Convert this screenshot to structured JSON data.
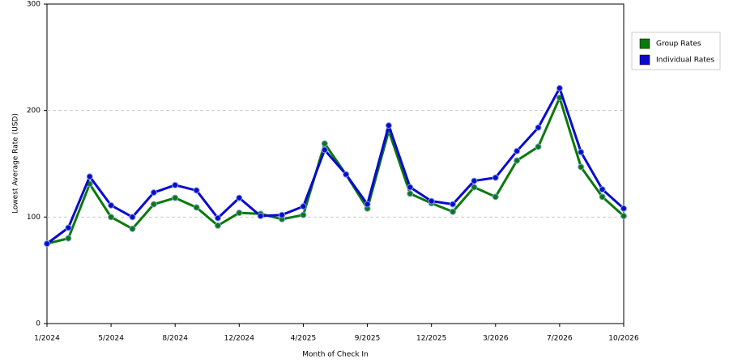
{
  "chart_data": {
    "type": "line",
    "xlabel": "Month of Check In",
    "ylabel": "Lowest Average Rate (USD)",
    "categories": [
      "1/2024",
      null,
      null,
      "5/2024",
      null,
      null,
      "8/2024",
      null,
      null,
      "12/2024",
      null,
      null,
      "4/2025",
      null,
      null,
      "9/2025",
      null,
      null,
      "12/2025",
      null,
      null,
      "3/2026",
      null,
      null,
      "7/2026",
      null,
      null,
      "10/2026"
    ],
    "series": [
      {
        "name": "Group Rates",
        "color": "#0a7a0a",
        "values": [
          75,
          80,
          131,
          100,
          89,
          112,
          118,
          109,
          92,
          104,
          103,
          98,
          102,
          169,
          140,
          108,
          181,
          122,
          113,
          105,
          128,
          119,
          153,
          166,
          212,
          147,
          119,
          101
        ]
      },
      {
        "name": "Individual Rates",
        "color": "#0a0ad0",
        "values": [
          75,
          90,
          138,
          111,
          100,
          123,
          130,
          125,
          99,
          118,
          101,
          102,
          110,
          163,
          140,
          112,
          186,
          128,
          115,
          112,
          134,
          137,
          162,
          184,
          221,
          161,
          126,
          108
        ]
      }
    ],
    "ylim": [
      0,
      300
    ],
    "yticks": [
      0,
      100,
      200,
      300
    ],
    "grid": true,
    "legend": "top-right"
  }
}
